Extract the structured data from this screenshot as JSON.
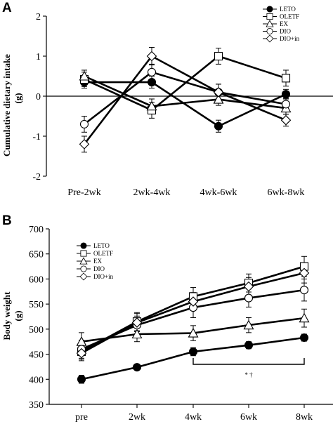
{
  "chart_data": [
    {
      "panel": "A",
      "type": "line",
      "ylabel": "Cumulative dietary intake",
      "ylabel_unit": "(g)",
      "categories": [
        "Pre-2wk",
        "2wk-4wk",
        "4wk-6wk",
        "6wk-8wk"
      ],
      "ylim": [
        -2,
        2
      ],
      "yticks": [
        "2",
        "1",
        "0",
        "-1",
        "-2"
      ],
      "legend_position": "top-right",
      "series": [
        {
          "name": "LETO",
          "marker": "filled-circle",
          "values": [
            0.35,
            0.35,
            -0.75,
            0.05
          ],
          "errors": [
            0.15,
            0.15,
            0.15,
            0.12
          ]
        },
        {
          "name": "OLETF",
          "marker": "open-square",
          "values": [
            0.42,
            -0.35,
            1.0,
            0.45
          ],
          "errors": [
            0.18,
            0.2,
            0.2,
            0.2
          ]
        },
        {
          "name": "EX",
          "marker": "open-triangle",
          "values": [
            0.5,
            -0.25,
            -0.08,
            -0.3
          ],
          "errors": [
            0.15,
            0.18,
            0.15,
            0.15
          ]
        },
        {
          "name": "DIO",
          "marker": "open-circle",
          "values": [
            -0.7,
            0.6,
            0.1,
            -0.2
          ],
          "errors": [
            0.2,
            0.2,
            0.2,
            0.15
          ]
        },
        {
          "name": "DIO+in",
          "marker": "open-diamond",
          "values": [
            -1.2,
            1.0,
            0.1,
            -0.6
          ],
          "errors": [
            0.2,
            0.22,
            0.2,
            0.15
          ]
        }
      ]
    },
    {
      "panel": "B",
      "type": "line",
      "ylabel": "Body weight",
      "ylabel_unit": "(g)",
      "categories": [
        "pre",
        "2wk",
        "4wk",
        "6wk",
        "8wk"
      ],
      "ylim": [
        350,
        700
      ],
      "yticks": [
        "700",
        "650",
        "600",
        "550",
        "500",
        "450",
        "400",
        "350"
      ],
      "legend_position": "top-left",
      "annotation": "* †",
      "bracket_from": "4wk",
      "bracket_to": "8wk",
      "series": [
        {
          "name": "LETO",
          "marker": "filled-circle",
          "values": [
            400,
            424,
            455,
            468,
            483
          ],
          "errors": [
            8,
            5,
            8,
            7,
            7
          ]
        },
        {
          "name": "OLETF",
          "marker": "open-square",
          "values": [
            455,
            515,
            565,
            592,
            625
          ],
          "errors": [
            15,
            18,
            18,
            18,
            20
          ]
        },
        {
          "name": "EX",
          "marker": "open-triangle",
          "values": [
            475,
            490,
            492,
            508,
            522
          ],
          "errors": [
            18,
            15,
            15,
            15,
            18
          ]
        },
        {
          "name": "DIO",
          "marker": "open-circle",
          "values": [
            460,
            508,
            543,
            562,
            578
          ],
          "errors": [
            18,
            18,
            20,
            18,
            22
          ]
        },
        {
          "name": "DIO+in",
          "marker": "open-diamond",
          "values": [
            452,
            513,
            555,
            585,
            612
          ],
          "errors": [
            15,
            18,
            18,
            18,
            20
          ]
        }
      ]
    }
  ]
}
